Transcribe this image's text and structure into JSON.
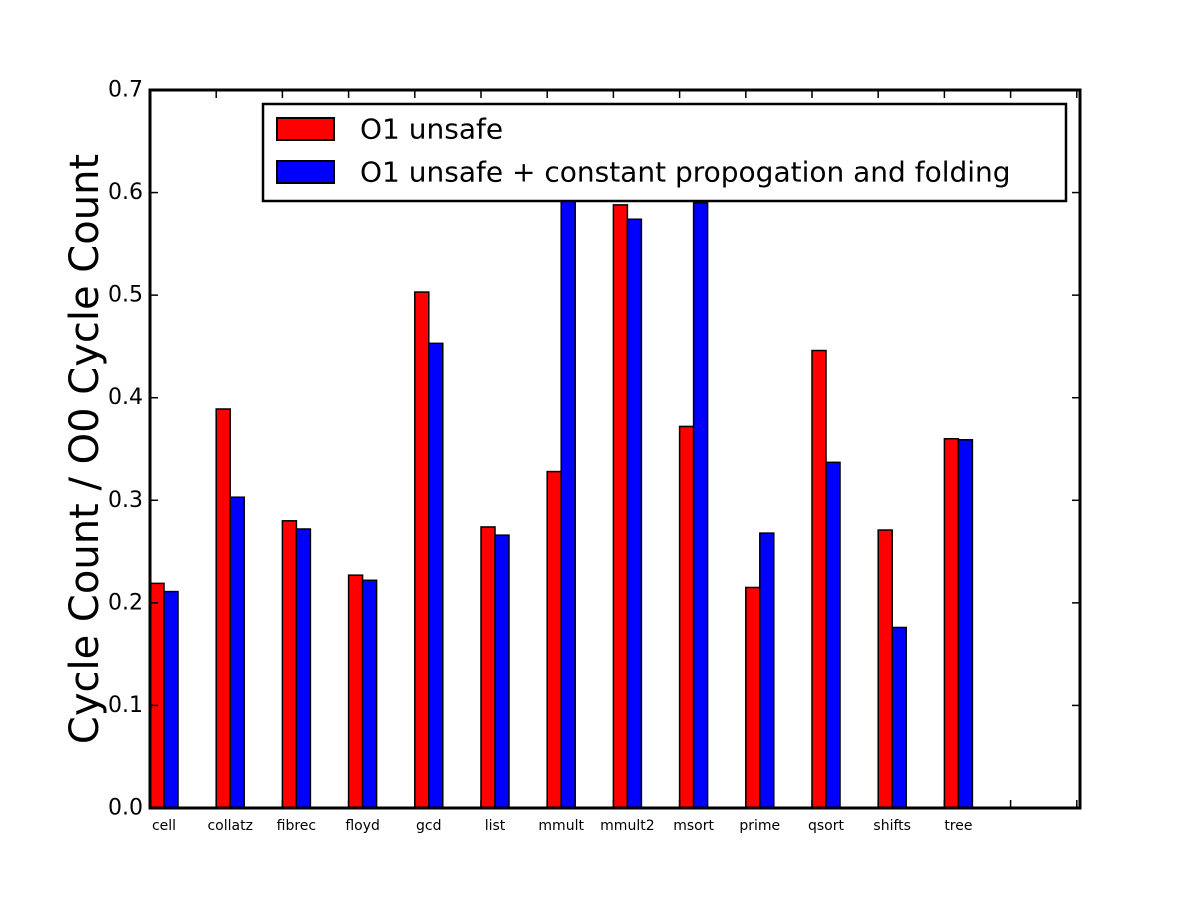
{
  "chart_data": {
    "type": "bar",
    "ylabel": "Cycle Count / O0 Cycle Count",
    "xlabel": "",
    "title": "",
    "ylim": [
      0,
      0.7
    ],
    "yticks": [
      "0.0",
      "0.1",
      "0.2",
      "0.3",
      "0.4",
      "0.5",
      "0.6",
      "0.7"
    ],
    "categories": [
      "cell",
      "collatz",
      "fibrec",
      "floyd",
      "gcd",
      "list",
      "mmult",
      "mmult2",
      "msort",
      "prime",
      "qsort",
      "shifts",
      "tree"
    ],
    "series": [
      {
        "name": "O1 unsafe",
        "color": "#ff0000",
        "values": [
          0.219,
          0.389,
          0.28,
          0.227,
          0.503,
          0.274,
          0.328,
          0.588,
          0.372,
          0.215,
          0.446,
          0.271,
          0.36
        ]
      },
      {
        "name": "O1 unsafe + constant propogation and folding",
        "color": "#0000ff",
        "values": [
          0.211,
          0.303,
          0.272,
          0.222,
          0.453,
          0.266,
          0.592,
          0.574,
          0.59,
          0.268,
          0.337,
          0.176,
          0.359
        ]
      }
    ],
    "legend_position": "top-right",
    "grid": false
  }
}
